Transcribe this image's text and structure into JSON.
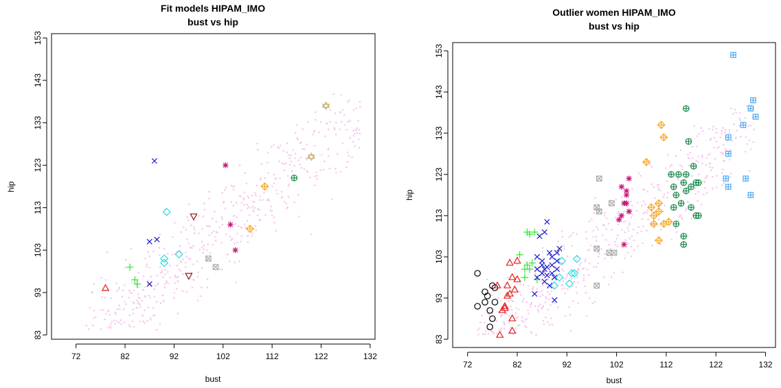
{
  "chart_data": [
    {
      "type": "scatter",
      "title": "Fit models HIPAM_IMO",
      "subtitle": "bust vs hip",
      "xlabel": "bust",
      "ylabel": "hip",
      "xlim": [
        67,
        133
      ],
      "ylim": [
        82,
        154
      ],
      "xticks": [
        "72",
        "82",
        "92",
        "102",
        "112",
        "122",
        "132"
      ],
      "yticks": [
        "83",
        "93",
        "103",
        "113",
        "123",
        "133",
        "143",
        "153"
      ],
      "grid": false,
      "legend": "none",
      "background_cloud": {
        "color": "#f7c9f0",
        "description_points": 600,
        "x_range": [
          74,
          131
        ],
        "y_range": [
          84,
          140
        ]
      },
      "series": [
        {
          "marker": "triangle",
          "color": "#e31a1c",
          "points": [
            [
              78,
              94
            ]
          ]
        },
        {
          "marker": "plus",
          "color": "#2ee62e",
          "points": [
            [
              83,
              99
            ],
            [
              84,
              96
            ],
            [
              84.5,
              95
            ]
          ]
        },
        {
          "marker": "x",
          "color": "#1a1acc",
          "points": [
            [
              87,
              105
            ],
            [
              88.5,
              105.5
            ],
            [
              87,
              95
            ],
            [
              88,
              124
            ]
          ]
        },
        {
          "marker": "diamond",
          "color": "#22dddd",
          "points": [
            [
              90,
              100
            ],
            [
              90,
              101
            ],
            [
              90.5,
              112
            ],
            [
              93,
              102
            ]
          ]
        },
        {
          "marker": "triangle-down",
          "color": "#8b1a1a",
          "points": [
            [
              96,
              111
            ],
            [
              95,
              97
            ]
          ]
        },
        {
          "marker": "square-x",
          "color": "#aaaaaa",
          "points": [
            [
              99,
              101
            ],
            [
              100.5,
              99
            ]
          ]
        },
        {
          "marker": "star",
          "color": "#c41478",
          "points": [
            [
              102.5,
              123
            ],
            [
              103.5,
              109
            ],
            [
              104.5,
              103
            ]
          ]
        },
        {
          "marker": "diamond-plus",
          "color": "#f5a623",
          "points": [
            [
              107.5,
              108
            ],
            [
              110.5,
              118
            ]
          ]
        },
        {
          "marker": "circle-plus",
          "color": "#188a4a",
          "points": [
            [
              116.5,
              120
            ]
          ]
        },
        {
          "marker": "star-of-david",
          "color": "#c8b273",
          "points": [
            [
              120,
              125
            ],
            [
              123,
              137
            ]
          ]
        }
      ]
    },
    {
      "type": "scatter",
      "title": "Outlier women HIPAM_IMO",
      "subtitle": "bust vs hip",
      "xlabel": "bust",
      "ylabel": "hip",
      "xlim": [
        69,
        134
      ],
      "ylim": [
        81,
        155
      ],
      "xticks": [
        "72",
        "82",
        "92",
        "102",
        "112",
        "122",
        "132"
      ],
      "yticks": [
        "83",
        "93",
        "103",
        "113",
        "123",
        "133",
        "143",
        "153"
      ],
      "grid": false,
      "legend": "none",
      "background_cloud": {
        "color": "#f7c9f0",
        "description_points": 600,
        "x_range": [
          74,
          131
        ],
        "y_range": [
          84,
          140
        ]
      },
      "series": [
        {
          "marker": "circle",
          "color": "#000000",
          "points": [
            [
              74,
              99
            ],
            [
              74,
              91
            ],
            [
              75.5,
              92
            ],
            [
              75.5,
              94.5
            ],
            [
              76,
              93.5
            ],
            [
              76.5,
              90
            ],
            [
              76.5,
              86
            ],
            [
              77,
              88
            ],
            [
              77,
              96
            ],
            [
              77.5,
              92
            ],
            [
              77.5,
              95.5
            ]
          ]
        },
        {
          "marker": "triangle",
          "color": "#e31a1c",
          "points": [
            [
              78,
              96
            ],
            [
              78.5,
              84
            ],
            [
              79,
              90
            ],
            [
              79.5,
              90.5
            ],
            [
              80,
              96
            ],
            [
              80,
              93.5
            ],
            [
              80.5,
              94
            ],
            [
              80.5,
              101.5
            ],
            [
              81,
              98
            ],
            [
              81,
              85
            ],
            [
              81,
              88
            ],
            [
              81.5,
              95
            ],
            [
              82,
              97.5
            ],
            [
              82,
              102
            ],
            [
              79.5,
              91
            ]
          ]
        },
        {
          "marker": "plus",
          "color": "#2ee62e",
          "points": [
            [
              82.5,
              103.5
            ],
            [
              83.5,
              100
            ],
            [
              83.5,
              98
            ],
            [
              84,
              101
            ],
            [
              84,
              109
            ],
            [
              84.5,
              100
            ],
            [
              85,
              101.5
            ],
            [
              85.5,
              109
            ],
            [
              86,
              97.5
            ],
            [
              84.5,
              108.5
            ]
          ]
        },
        {
          "marker": "x",
          "color": "#1a1acc",
          "points": [
            [
              85.5,
              94
            ],
            [
              86,
              98
            ],
            [
              86,
              100
            ],
            [
              86.5,
              108
            ],
            [
              87,
              99
            ],
            [
              87,
              101
            ],
            [
              87,
              102
            ],
            [
              87.5,
              100
            ],
            [
              87.5,
              97
            ],
            [
              88,
              98.5
            ],
            [
              88,
              100.5
            ],
            [
              88,
              111.5
            ],
            [
              88.5,
              104
            ],
            [
              88.5,
              96
            ],
            [
              89,
              101
            ],
            [
              89,
              103
            ],
            [
              89,
              99
            ],
            [
              89.5,
              98
            ],
            [
              90,
              102
            ],
            [
              90,
              104
            ],
            [
              90.5,
              105
            ],
            [
              90,
              100
            ],
            [
              89.5,
              92.5
            ],
            [
              87.5,
              109
            ],
            [
              86,
              103
            ]
          ]
        },
        {
          "marker": "diamond",
          "color": "#22dddd",
          "points": [
            [
              89.5,
              96
            ],
            [
              90.5,
              98
            ],
            [
              91,
              102
            ],
            [
              92.5,
              96.5
            ],
            [
              93,
              99
            ],
            [
              93.5,
              99
            ],
            [
              94,
              102.5
            ]
          ]
        },
        {
          "marker": "square-x",
          "color": "#aaaaaa",
          "points": [
            [
              98,
              105
            ],
            [
              98,
              115
            ],
            [
              98.5,
              114
            ],
            [
              98.5,
              122
            ],
            [
              98,
              96
            ],
            [
              100.5,
              104
            ],
            [
              101,
              116
            ],
            [
              101.5,
              104
            ]
          ]
        },
        {
          "marker": "star",
          "color": "#c41478",
          "points": [
            [
              102.5,
              112
            ],
            [
              103,
              120
            ],
            [
              103.5,
              116
            ],
            [
              103.5,
              106
            ],
            [
              104,
              116
            ],
            [
              104,
              118
            ],
            [
              104.5,
              114
            ],
            [
              104.5,
              122
            ],
            [
              104,
              119
            ],
            [
              103,
              113
            ]
          ]
        },
        {
          "marker": "diamond-plus",
          "color": "#f5a623",
          "points": [
            [
              108,
              126
            ],
            [
              109,
              115
            ],
            [
              109.5,
              113
            ],
            [
              109.5,
              111
            ],
            [
              110.5,
              116
            ],
            [
              110.5,
              114
            ],
            [
              110.5,
              107
            ],
            [
              111,
              135
            ],
            [
              111.5,
              132
            ],
            [
              111.5,
              111
            ],
            [
              112.5,
              111.5
            ]
          ]
        },
        {
          "marker": "circle-plus",
          "color": "#188a4a",
          "points": [
            [
              113,
              123
            ],
            [
              113.5,
              120
            ],
            [
              113.5,
              115
            ],
            [
              114,
              118
            ],
            [
              114,
              111
            ],
            [
              114.5,
              123
            ],
            [
              115,
              116
            ],
            [
              115.5,
              121
            ],
            [
              115.5,
              106
            ],
            [
              115.5,
              108
            ],
            [
              116,
              119
            ],
            [
              116,
              139
            ],
            [
              116.5,
              131
            ],
            [
              117,
              115
            ],
            [
              117,
              120
            ],
            [
              117.5,
              125
            ],
            [
              118,
              121
            ],
            [
              118,
              113
            ],
            [
              118.5,
              113
            ],
            [
              118.5,
              121
            ],
            [
              116,
              123
            ]
          ]
        },
        {
          "marker": "square-plus",
          "color": "#4ea8f0",
          "points": [
            [
              124,
              122
            ],
            [
              124.5,
              128
            ],
            [
              124.5,
              120
            ],
            [
              124.5,
              132
            ],
            [
              125.5,
              152
            ],
            [
              127.5,
              135
            ],
            [
              128,
              122
            ],
            [
              129,
              139
            ],
            [
              129,
              118
            ],
            [
              129.5,
              141
            ],
            [
              130,
              137
            ]
          ]
        }
      ]
    }
  ]
}
